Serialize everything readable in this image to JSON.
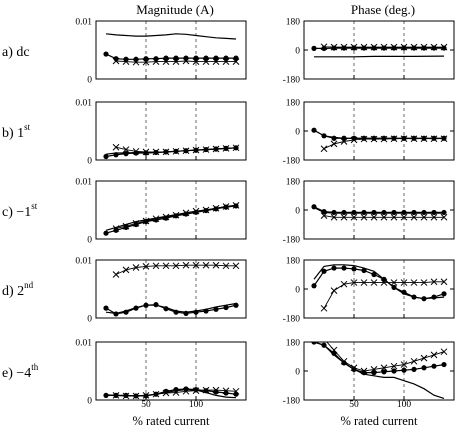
{
  "chart_data": {
    "type": "line",
    "title": "",
    "columns": [
      {
        "title": "Magnitude (A)",
        "ylim": [
          0,
          0.01
        ],
        "yticks": [
          0,
          0.01
        ],
        "ytick_labels": [
          "0",
          "0.01"
        ]
      },
      {
        "title": "Phase (deg.)",
        "ylim": [
          -180,
          180
        ],
        "yticks": [
          -180,
          0,
          180
        ],
        "ytick_labels": [
          "-180",
          "0",
          "180"
        ]
      }
    ],
    "xlabel": "% rated current",
    "xlim": [
      0,
      150
    ],
    "xticks": [
      50,
      100
    ],
    "xtick_labels": [
      "50",
      "100"
    ],
    "grid": "dashed vertical lines at x = 50 and x = 100",
    "markers": {
      "dots": "filled-circle",
      "crosses": "x-cross",
      "line": "solid-line"
    },
    "rows": [
      {
        "label": "a) dc",
        "magnitude": {
          "line": {
            "x": [
              10,
              20,
              30,
              40,
              50,
              60,
              70,
              80,
              90,
              100,
              110,
              120,
              130,
              140
            ],
            "y": [
              0.0078,
              0.0076,
              0.0075,
              0.0074,
              0.0074,
              0.0075,
              0.0076,
              0.0078,
              0.0077,
              0.0075,
              0.0073,
              0.0071,
              0.007,
              0.0069
            ]
          },
          "dots": {
            "x": [
              10,
              20,
              30,
              40,
              50,
              60,
              70,
              80,
              90,
              100,
              110,
              120,
              130,
              140
            ],
            "y": [
              0.0043,
              0.0035,
              0.0034,
              0.0034,
              0.0035,
              0.0035,
              0.0036,
              0.0036,
              0.0036,
              0.0036,
              0.0036,
              0.0036,
              0.0036,
              0.0036
            ]
          },
          "crosses": {
            "x": [
              20,
              30,
              40,
              50,
              60,
              70,
              80,
              90,
              100,
              110,
              120,
              130,
              140
            ],
            "y": [
              0.0031,
              0.003,
              0.0029,
              0.0029,
              0.003,
              0.003,
              0.003,
              0.0031,
              0.003,
              0.003,
              0.003,
              0.003,
              0.003
            ]
          }
        },
        "phase": {
          "line": {
            "x": [
              10,
              30,
              50,
              70,
              90,
              110,
              140
            ],
            "y": [
              -42,
              -42,
              -42,
              -40,
              -40,
              -40,
              -38
            ]
          },
          "dots": {
            "x": [
              10,
              20,
              30,
              40,
              50,
              60,
              70,
              80,
              90,
              100,
              110,
              120,
              130,
              140
            ],
            "y": [
              10,
              10,
              12,
              12,
              12,
              12,
              12,
              12,
              12,
              12,
              12,
              12,
              12,
              12
            ]
          },
          "crosses": {
            "x": [
              20,
              30,
              40,
              50,
              60,
              70,
              80,
              90,
              100,
              110,
              120,
              130,
              140
            ],
            "y": [
              20,
              18,
              18,
              18,
              18,
              18,
              18,
              18,
              18,
              18,
              18,
              18,
              18
            ]
          }
        }
      },
      {
        "label": "b) 1st",
        "magnitude": {
          "line": {
            "x": [
              10,
              20,
              30,
              40,
              50,
              60,
              70,
              80,
              90,
              100,
              110,
              120,
              130,
              140
            ],
            "y": [
              0.001,
              0.0012,
              0.0012,
              0.0013,
              0.0013,
              0.0013,
              0.0014,
              0.0015,
              0.0016,
              0.0017,
              0.0018,
              0.0019,
              0.002,
              0.0021
            ]
          },
          "dots": {
            "x": [
              10,
              20,
              30,
              40,
              50,
              60,
              70,
              80,
              90,
              100,
              110,
              120,
              130,
              140
            ],
            "y": [
              0.0006,
              0.0009,
              0.0011,
              0.0012,
              0.0012,
              0.0013,
              0.0014,
              0.0015,
              0.0016,
              0.0017,
              0.0018,
              0.0019,
              0.002,
              0.0021
            ]
          },
          "crosses": {
            "x": [
              20,
              30,
              40,
              50,
              60,
              70,
              80,
              90,
              100,
              110,
              120,
              130,
              140
            ],
            "y": [
              0.0022,
              0.0018,
              0.0015,
              0.0014,
              0.0014,
              0.0014,
              0.0015,
              0.0016,
              0.0017,
              0.0018,
              0.0019,
              0.002,
              0.0021
            ]
          }
        },
        "phase": {
          "line": {
            "x": [
              20,
              30,
              40,
              50,
              60,
              70,
              80,
              90,
              100,
              110,
              120,
              130,
              140
            ],
            "y": [
              -30,
              -40,
              -45,
              -45,
              -45,
              -45,
              -45,
              -45,
              -45,
              -45,
              -45,
              -45,
              -45
            ]
          },
          "dots": {
            "x": [
              10,
              20,
              30,
              40,
              50,
              60,
              70,
              80,
              90,
              100,
              110,
              120,
              130,
              140
            ],
            "y": [
              5,
              -30,
              -45,
              -45,
              -45,
              -45,
              -45,
              -45,
              -45,
              -45,
              -45,
              -45,
              -45,
              -45
            ]
          },
          "crosses": {
            "x": [
              20,
              30,
              40,
              50,
              60,
              70,
              80,
              90,
              100,
              110,
              120,
              130,
              140
            ],
            "y": [
              -110,
              -80,
              -65,
              -55,
              -50,
              -50,
              -50,
              -48,
              -48,
              -48,
              -48,
              -48,
              -48
            ]
          }
        }
      },
      {
        "label": "c) −1st",
        "magnitude": {
          "line": {
            "x": [
              10,
              20,
              30,
              40,
              50,
              60,
              70,
              80,
              90,
              100,
              110,
              120,
              130,
              140
            ],
            "y": [
              0.0015,
              0.002,
              0.0025,
              0.003,
              0.0033,
              0.0036,
              0.0039,
              0.0042,
              0.0045,
              0.0048,
              0.005,
              0.0053,
              0.0056,
              0.0058
            ]
          },
          "dots": {
            "x": [
              10,
              20,
              30,
              40,
              50,
              60,
              70,
              80,
              90,
              100,
              110,
              120,
              130,
              140
            ],
            "y": [
              0.001,
              0.0015,
              0.002,
              0.0025,
              0.003,
              0.0033,
              0.0036,
              0.004,
              0.0043,
              0.0046,
              0.0049,
              0.0052,
              0.0055,
              0.0057
            ]
          },
          "crosses": {
            "x": [
              20,
              30,
              40,
              50,
              60,
              70,
              80,
              90,
              100,
              110,
              120,
              130,
              140
            ],
            "y": [
              0.0018,
              0.0022,
              0.0027,
              0.0031,
              0.0035,
              0.0038,
              0.0041,
              0.0045,
              0.0048,
              0.005,
              0.0053,
              0.0056,
              0.0058
            ]
          }
        },
        "phase": {
          "line": {
            "x": [
              10,
              20,
              30,
              40,
              50,
              60,
              70,
              80,
              90,
              100,
              110,
              120,
              130,
              140
            ],
            "y": [
              15,
              -15,
              -20,
              -20,
              -20,
              -20,
              -20,
              -20,
              -20,
              -20,
              -20,
              -20,
              -20,
              -20
            ]
          },
          "dots": {
            "x": [
              10,
              20,
              30,
              40,
              50,
              60,
              70,
              80,
              90,
              100,
              110,
              120,
              130,
              140
            ],
            "y": [
              20,
              -10,
              -15,
              -15,
              -15,
              -15,
              -15,
              -15,
              -15,
              -15,
              -15,
              -15,
              -15,
              -15
            ]
          },
          "crosses": {
            "x": [
              20,
              30,
              40,
              50,
              60,
              70,
              80,
              90,
              100,
              110,
              120,
              130,
              140
            ],
            "y": [
              -35,
              -45,
              -45,
              -45,
              -45,
              -45,
              -45,
              -45,
              -45,
              -45,
              -45,
              -45,
              -45
            ]
          }
        }
      },
      {
        "label": "d) 2nd",
        "magnitude": {
          "line": {
            "x": [
              10,
              20,
              30,
              40,
              50,
              60,
              70,
              80,
              90,
              100,
              110,
              120,
              130,
              140
            ],
            "y": [
              0.001,
              0.0008,
              0.0012,
              0.0018,
              0.0022,
              0.0022,
              0.0018,
              0.0012,
              0.001,
              0.0012,
              0.0015,
              0.0019,
              0.0022,
              0.0025
            ]
          },
          "dots": {
            "x": [
              10,
              20,
              30,
              40,
              50,
              60,
              70,
              80,
              90,
              100,
              110,
              120,
              130,
              140
            ],
            "y": [
              0.0017,
              0.0007,
              0.001,
              0.0017,
              0.0022,
              0.0023,
              0.0016,
              0.001,
              0.0008,
              0.001,
              0.0012,
              0.0015,
              0.0018,
              0.0022
            ]
          },
          "crosses": {
            "x": [
              20,
              30,
              40,
              50,
              60,
              70,
              80,
              90,
              100,
              110,
              120,
              130,
              140
            ],
            "y": [
              0.0075,
              0.0083,
              0.0087,
              0.0089,
              0.009,
              0.009,
              0.009,
              0.0091,
              0.0091,
              0.0091,
              0.0091,
              0.009,
              0.009
            ]
          }
        },
        "phase": {
          "line": {
            "x": [
              10,
              20,
              30,
              40,
              50,
              60,
              70,
              80,
              90,
              100,
              110,
              120,
              130,
              140
            ],
            "y": [
              60,
              140,
              150,
              150,
              145,
              130,
              110,
              60,
              10,
              -30,
              -50,
              -60,
              -55,
              -50
            ]
          },
          "dots": {
            "x": [
              10,
              20,
              30,
              40,
              50,
              60,
              70,
              80,
              90,
              100,
              110,
              120,
              130,
              140
            ],
            "y": [
              20,
              110,
              130,
              130,
              125,
              115,
              90,
              60,
              10,
              -20,
              -50,
              -60,
              -50,
              -30
            ]
          },
          "crosses": {
            "x": [
              20,
              30,
              40,
              50,
              60,
              70,
              80,
              90,
              100,
              110,
              120,
              130,
              140
            ],
            "y": [
              -120,
              -10,
              30,
              40,
              40,
              40,
              40,
              40,
              40,
              40,
              40,
              45,
              45
            ]
          }
        }
      },
      {
        "label": "e) −4th",
        "magnitude": {
          "line": {
            "x": [
              10,
              20,
              30,
              40,
              50,
              60,
              70,
              80,
              90,
              100,
              110,
              120,
              130,
              140
            ],
            "y": [
              0.0009,
              0.0008,
              0.0007,
              0.0007,
              0.0008,
              0.001,
              0.0013,
              0.0016,
              0.0018,
              0.0017,
              0.0013,
              0.0008,
              0.0005,
              0.0004
            ]
          },
          "dots": {
            "x": [
              10,
              20,
              30,
              40,
              50,
              60,
              70,
              80,
              90,
              100,
              110,
              120,
              130,
              140
            ],
            "y": [
              0.0008,
              0.0008,
              0.0008,
              0.0007,
              0.0007,
              0.001,
              0.0015,
              0.0018,
              0.0019,
              0.0018,
              0.0016,
              0.0014,
              0.0012,
              0.001
            ]
          },
          "crosses": {
            "x": [
              20,
              30,
              40,
              50,
              60,
              70,
              80,
              90,
              100,
              110,
              120,
              130,
              140
            ],
            "y": [
              0.0008,
              0.0007,
              0.0007,
              0.0008,
              0.001,
              0.0012,
              0.0013,
              0.0015,
              0.0016,
              0.0017,
              0.0017,
              0.0016,
              0.0015
            ]
          }
        },
        "phase": {
          "line": {
            "x": [
              10,
              20,
              30,
              40,
              50,
              60,
              70,
              80,
              90,
              100,
              110,
              120,
              130,
              140
            ],
            "y": [
              180,
              160,
              100,
              50,
              10,
              -20,
              -30,
              -40,
              -40,
              -60,
              -80,
              -110,
              -150,
              -170
            ]
          },
          "dots": {
            "x": [
              10,
              20,
              30,
              40,
              50,
              60,
              70,
              80,
              90,
              100,
              110,
              120,
              130,
              140
            ],
            "y": [
              180,
              160,
              110,
              50,
              10,
              -10,
              -10,
              -5,
              0,
              5,
              10,
              20,
              30,
              40
            ]
          },
          "crosses": {
            "x": [
              20,
              30,
              40,
              50,
              60,
              70,
              80,
              90,
              100,
              110,
              120,
              130,
              140
            ],
            "y": [
              200,
              130,
              60,
              20,
              0,
              10,
              20,
              30,
              40,
              60,
              80,
              100,
              120
            ]
          }
        }
      }
    ]
  }
}
